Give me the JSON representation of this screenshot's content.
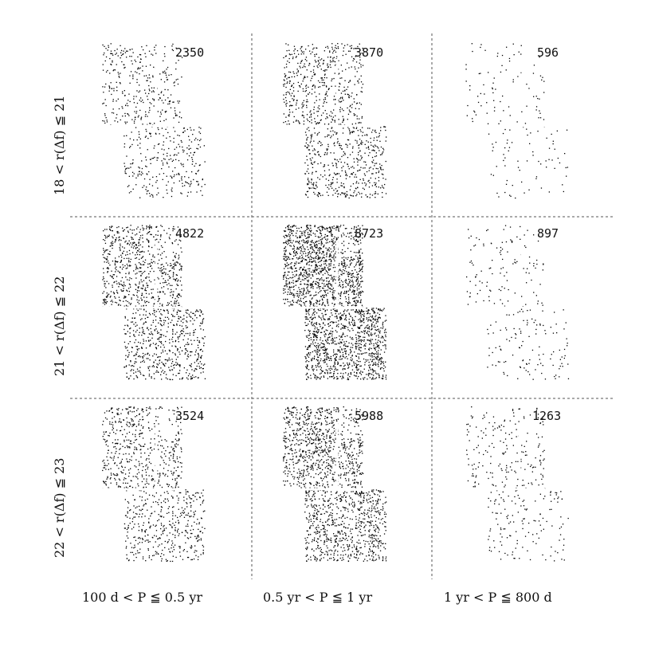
{
  "chart_data": {
    "type": "scatter",
    "title": "",
    "columns": [
      {
        "label": "100 d < P ≦ 0.5 yr"
      },
      {
        "label": "0.5 yr < P ≦ 1 yr"
      },
      {
        "label": "1 yr < P ≦ 800 d"
      }
    ],
    "rows": [
      {
        "label": "18 < r(Δf) ≦ 21"
      },
      {
        "label": "21 < r(Δf) ≦ 22"
      },
      {
        "label": "22 < r(Δf) ≦ 23"
      }
    ],
    "counts": [
      [
        2350,
        3870,
        596
      ],
      [
        4822,
        8723,
        897
      ],
      [
        3524,
        5988,
        1263
      ]
    ],
    "grid_style": "dashed",
    "point_color": "#000000"
  }
}
